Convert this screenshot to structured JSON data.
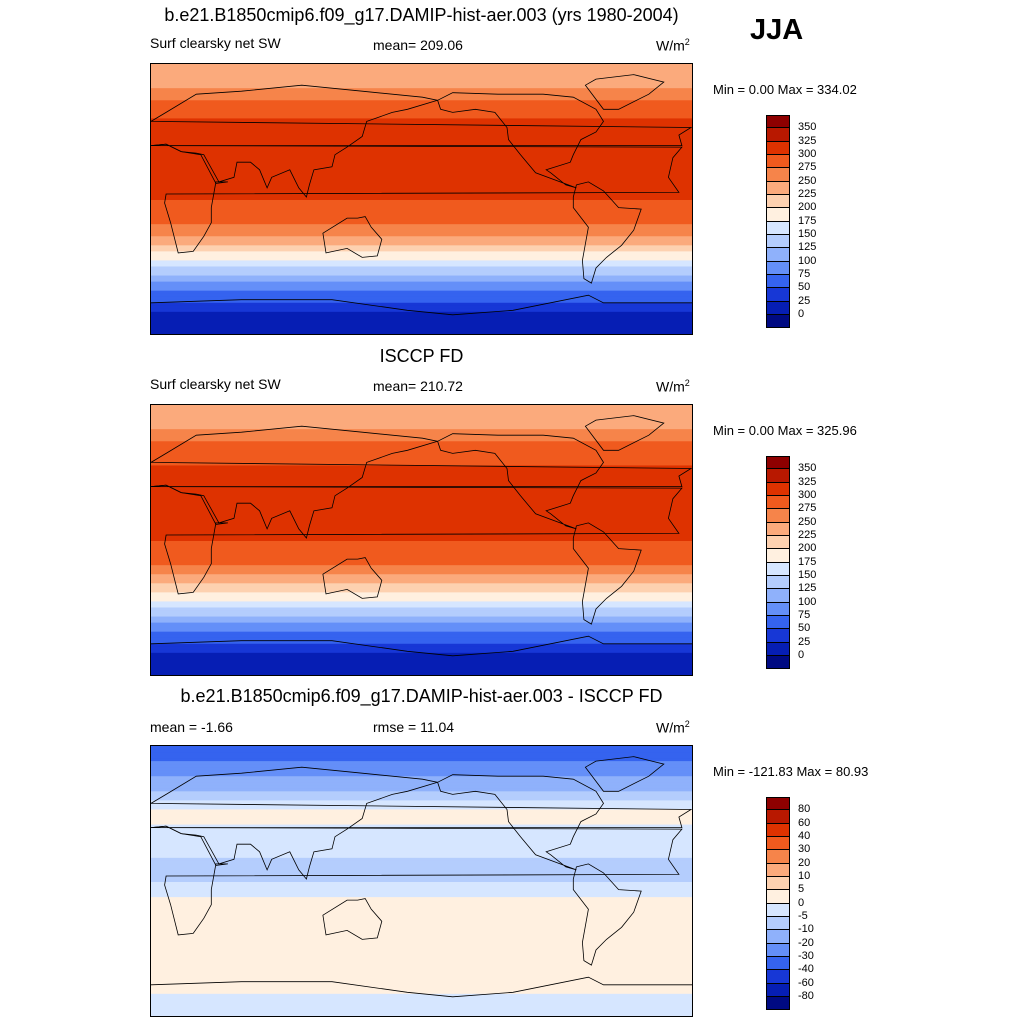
{
  "season": "JJA",
  "panels": [
    {
      "title": "b.e21.B1850cmip6.f09_g17.DAMIP-hist-aer.003 (yrs 1980-2004)",
      "left_label": "Surf clearsky net SW",
      "center_label": "mean= 209.06",
      "units": "W/m",
      "units_sup": "2",
      "minmax": "Min =   0.00 Max = 334.02"
    },
    {
      "title": "ISCCP FD",
      "left_label": "Surf clearsky net SW",
      "center_label": "mean= 210.72",
      "units": "W/m",
      "units_sup": "2",
      "minmax": "Min =   0.00 Max = 325.96"
    },
    {
      "title": "b.e21.B1850cmip6.f09_g17.DAMIP-hist-aer.003 - ISCCP FD",
      "left_label": "mean =  -1.66",
      "center_label": "rmse =  11.04",
      "units": "W/m",
      "units_sup": "2",
      "minmax": "Min = -121.83 Max =  80.93"
    }
  ],
  "chart_data": [
    {
      "type": "heatmap",
      "title": "b.e21.B1850cmip6.f09_g17.DAMIP-hist-aer.003 (yrs 1980-2004)",
      "variable": "Surf clearsky net SW",
      "units": "W/m2",
      "mean": 209.06,
      "min": 0.0,
      "max": 334.02,
      "colorbar_levels": [
        "350",
        "325",
        "300",
        "275",
        "250",
        "225",
        "200",
        "175",
        "150",
        "125",
        "100",
        "75",
        "50",
        "25",
        "0"
      ],
      "colorbar_colors": [
        "#8e0000",
        "#b81800",
        "#de3200",
        "#f05a1e",
        "#f6844a",
        "#fbaa7c",
        "#fdd1b0",
        "#fff0e0",
        "#d6e6ff",
        "#b4cdfd",
        "#8fb1fb",
        "#648ff8",
        "#3563ef",
        "#1737d6",
        "#061eb4",
        "#000a82"
      ],
      "zonal_profile": {
        "lat": [
          80,
          60,
          45,
          30,
          15,
          0,
          -15,
          -30,
          -45,
          -60,
          -75
        ],
        "value": [
          230,
          295,
          310,
          315,
          310,
          300,
          280,
          225,
          150,
          75,
          25
        ]
      }
    },
    {
      "type": "heatmap",
      "title": "ISCCP FD",
      "variable": "Surf clearsky net SW",
      "units": "W/m2",
      "mean": 210.72,
      "min": 0.0,
      "max": 325.96,
      "colorbar_levels": [
        "350",
        "325",
        "300",
        "275",
        "250",
        "225",
        "200",
        "175",
        "150",
        "125",
        "100",
        "75",
        "50",
        "25",
        "0"
      ],
      "colorbar_colors": [
        "#8e0000",
        "#b81800",
        "#de3200",
        "#f05a1e",
        "#f6844a",
        "#fbaa7c",
        "#fdd1b0",
        "#fff0e0",
        "#d6e6ff",
        "#b4cdfd",
        "#8fb1fb",
        "#648ff8",
        "#3563ef",
        "#1737d6",
        "#061eb4",
        "#000a82"
      ],
      "zonal_profile": {
        "lat": [
          80,
          60,
          45,
          30,
          15,
          0,
          -15,
          -30,
          -45,
          -60,
          -75
        ],
        "value": [
          235,
          290,
          305,
          312,
          308,
          300,
          278,
          220,
          150,
          75,
          25
        ]
      }
    },
    {
      "type": "heatmap",
      "title": "b.e21.B1850cmip6.f09_g17.DAMIP-hist-aer.003 - ISCCP FD",
      "variable": "difference",
      "units": "W/m2",
      "mean": -1.66,
      "rmse": 11.04,
      "min": -121.83,
      "max": 80.93,
      "colorbar_levels": [
        "80",
        "60",
        "40",
        "30",
        "20",
        "10",
        "5",
        "0",
        "-5",
        "-10",
        "-20",
        "-30",
        "-40",
        "-60",
        "-80"
      ],
      "colorbar_colors": [
        "#8e0000",
        "#b81800",
        "#de3200",
        "#f05a1e",
        "#f6844a",
        "#fbaa7c",
        "#fdd1b0",
        "#fff0e0",
        "#d6e6ff",
        "#b4cdfd",
        "#8fb1fb",
        "#648ff8",
        "#3563ef",
        "#1737d6",
        "#061eb4",
        "#000a82"
      ],
      "zonal_profile": {
        "lat": [
          80,
          60,
          45,
          30,
          15,
          0,
          -15,
          -30,
          -45,
          -60,
          -75
        ],
        "value": [
          -30,
          -10,
          2,
          -2,
          -5,
          -5,
          2,
          3,
          2,
          2,
          0
        ]
      }
    }
  ]
}
